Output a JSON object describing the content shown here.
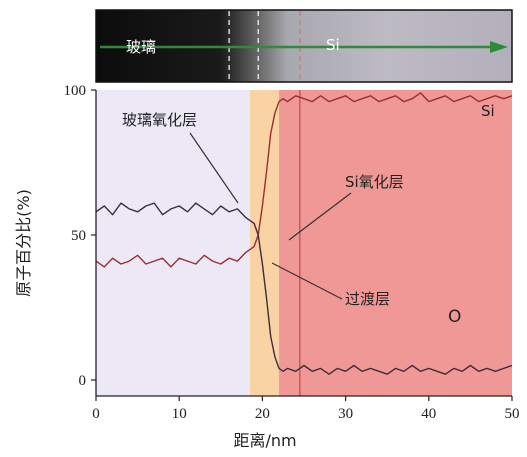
{
  "chart_data": {
    "type": "line",
    "xlabel": "距离/nm",
    "ylabel": "原子百分比(%)",
    "xlim": [
      0,
      50
    ],
    "ylim": [
      0,
      100
    ],
    "x_ticks": [
      0,
      10,
      20,
      30,
      40,
      50
    ],
    "y_ticks": [
      0,
      50,
      100
    ],
    "grid": false,
    "regions": [
      {
        "name": "glass",
        "x_start": 0,
        "x_end": 18.5,
        "color": "#ece8f6"
      },
      {
        "name": "transition",
        "x_start": 18.5,
        "x_end": 22,
        "color": "#f9d3a4"
      },
      {
        "name": "si",
        "x_start": 22,
        "x_end": 50,
        "color": "#f09895"
      }
    ],
    "interface_line_x": 24.5,
    "series": [
      {
        "name": "Si",
        "color": "#9e2c31",
        "x": [
          0,
          1,
          2,
          3,
          4,
          5,
          6,
          7,
          8,
          9,
          10,
          11,
          12,
          13,
          14,
          15,
          16,
          17,
          18,
          19,
          19.5,
          20,
          20.5,
          21,
          21.5,
          22,
          22.5,
          23,
          24,
          25,
          26,
          27,
          28,
          29,
          30,
          31,
          32,
          33,
          34,
          35,
          36,
          37,
          38,
          39,
          40,
          41,
          42,
          43,
          44,
          45,
          46,
          47,
          48,
          49,
          50
        ],
        "values": [
          41,
          39,
          42,
          40,
          41,
          43,
          40,
          41,
          42,
          39,
          42,
          41,
          40,
          43,
          41,
          40,
          42,
          41,
          44,
          46,
          50,
          60,
          72,
          85,
          92,
          96,
          97,
          96,
          98,
          97,
          96,
          98,
          96,
          97,
          98,
          96,
          97,
          98,
          96,
          97,
          98,
          96,
          97,
          99,
          96,
          97,
          98,
          96,
          97,
          98,
          96,
          97,
          98,
          97,
          98
        ]
      },
      {
        "name": "O",
        "color": "#3a2f3a",
        "x": [
          0,
          1,
          2,
          3,
          4,
          5,
          6,
          7,
          8,
          9,
          10,
          11,
          12,
          13,
          14,
          15,
          16,
          17,
          18,
          19,
          19.5,
          20,
          20.5,
          21,
          21.5,
          22,
          22.5,
          23,
          24,
          25,
          26,
          27,
          28,
          29,
          30,
          31,
          32,
          33,
          34,
          35,
          36,
          37,
          38,
          39,
          40,
          41,
          42,
          43,
          44,
          45,
          46,
          47,
          48,
          49,
          50
        ],
        "values": [
          58,
          60,
          57,
          61,
          59,
          58,
          60,
          61,
          57,
          59,
          60,
          58,
          61,
          59,
          57,
          60,
          58,
          59,
          56,
          54,
          50,
          40,
          28,
          15,
          8,
          4,
          3,
          4,
          3,
          5,
          3,
          4,
          2,
          4,
          3,
          5,
          3,
          4,
          3,
          2,
          4,
          3,
          5,
          3,
          4,
          3,
          2,
          4,
          3,
          5,
          3,
          4,
          3,
          4,
          5
        ]
      }
    ],
    "annotations": {
      "si_label": "Si",
      "o_label": "O",
      "glass_oxide_layer": "玻璃氧化层",
      "si_oxide_layer": "Si氧化层",
      "transition_layer": "过渡层"
    },
    "image_strip": {
      "left_label": "玻璃",
      "right_label": "Si",
      "arrow_color": "#2e8b3a",
      "dashed_lines_x": [
        16,
        19.5,
        24.5
      ]
    }
  }
}
